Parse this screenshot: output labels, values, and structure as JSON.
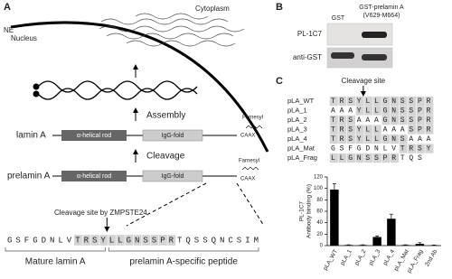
{
  "panel_a": {
    "label": "A",
    "cytoplasm": "Cytoplasm",
    "ne": "NE",
    "nucleus": "Nucleus",
    "lamin_a": "lamin A",
    "assembly": "Assembly",
    "prelamin_a": "prelamin A",
    "cleavage": "Cleavage",
    "rod": "α-helical rod",
    "igg": "IgG-fold",
    "farnesyl": "Farnesyl",
    "caax": "CAAX",
    "cleavage_site": "Cleavage site by ZMPSTE24",
    "sequence": "GSFGDNLVTRSYLLGNSSPRTQSSQNCSIM",
    "mature": "Mature lamin A",
    "peptide": "prelamin A-specific peptide"
  },
  "panel_b": {
    "label": "B",
    "gst": "GST",
    "gst_prelamin": "GST-prelamin A",
    "range": "(V629-M664)",
    "pl1c7": "PL-1C7",
    "anti_gst": "anti-GST"
  },
  "panel_c": {
    "label": "C",
    "cleavage_site": "Cleavage site",
    "peptides": [
      {
        "name": "pLA_WT",
        "sequence": "TRSYLLGNSSPR"
      },
      {
        "name": "pLA_1",
        "sequence": "AAAYLLGNSSPR"
      },
      {
        "name": "pLA_2",
        "sequence": "TRSAAAGNSSPR"
      },
      {
        "name": "pLA_3",
        "sequence": "TRSYLLAAASPR"
      },
      {
        "name": "pLA_4",
        "sequence": "TRSYLLGNSAAA"
      },
      {
        "name": "pLA_Mat",
        "sequence": "GSFGDNLVTRSY"
      },
      {
        "name": "pLA_Frag",
        "sequence": "LLGNSSPRTQS"
      }
    ]
  },
  "chart_data": {
    "type": "bar",
    "ylabel": [
      "PL-1C7",
      "Antibody binding (%)"
    ],
    "categories": [
      "pLA_WT",
      "pLA_1",
      "pLA_2",
      "pLA_3",
      "pLA_4",
      "pLA_Mat",
      "pLA_Frag",
      "2nd Ab"
    ],
    "values": [
      98,
      1,
      1,
      15,
      47,
      1,
      3,
      0.5
    ],
    "errors": [
      10,
      0.5,
      0.5,
      2,
      8,
      0.5,
      2,
      0.5
    ],
    "color": "#000000",
    "ylim": [
      0,
      120
    ],
    "yticks": [
      0,
      20,
      40,
      60,
      80,
      100,
      120
    ]
  }
}
